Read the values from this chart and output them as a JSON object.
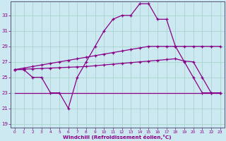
{
  "title": "",
  "xlabel": "Windchill (Refroidissement éolien,°C)",
  "background_color": "#cce8f0",
  "grid_color": "#aad4cc",
  "line_color": "#880088",
  "ylim": [
    18.5,
    34.8
  ],
  "xlim": [
    -0.5,
    23.5
  ],
  "yticks": [
    19,
    21,
    23,
    25,
    27,
    29,
    31,
    33
  ],
  "xticks": [
    0,
    1,
    2,
    3,
    4,
    5,
    6,
    7,
    8,
    9,
    10,
    11,
    12,
    13,
    14,
    15,
    16,
    17,
    18,
    19,
    20,
    21,
    22,
    23
  ],
  "hours": [
    0,
    1,
    2,
    3,
    4,
    5,
    6,
    7,
    8,
    9,
    10,
    11,
    12,
    13,
    14,
    15,
    16,
    17,
    18,
    19,
    20,
    21,
    22,
    23
  ],
  "line_wavy": [
    26,
    26,
    25,
    25,
    23,
    23,
    21,
    25,
    27,
    29,
    31,
    32.5,
    33,
    33,
    34.5,
    34.5,
    32.5,
    32.5,
    29,
    27,
    25,
    23,
    23,
    23
  ],
  "line_upper": [
    26,
    26.2,
    26.4,
    26.6,
    26.8,
    27.0,
    27.2,
    27.4,
    27.6,
    27.8,
    28.0,
    28.2,
    28.4,
    28.6,
    28.8,
    29.0,
    29.0,
    29.0,
    29.0,
    29.0,
    29.0,
    29.0,
    29.0,
    29.0
  ],
  "line_lower": [
    26,
    26.05,
    26.1,
    26.15,
    26.2,
    26.25,
    26.3,
    26.35,
    26.4,
    26.5,
    26.6,
    26.7,
    26.8,
    26.9,
    27.0,
    27.1,
    27.2,
    27.3,
    27.4,
    27.1,
    27.0,
    25,
    23,
    23
  ],
  "line_flat": [
    23,
    23,
    23,
    23,
    23,
    23,
    23,
    23,
    23,
    23,
    23,
    23,
    23,
    23,
    23,
    23,
    23,
    23,
    23,
    23,
    23,
    23,
    23,
    23
  ]
}
